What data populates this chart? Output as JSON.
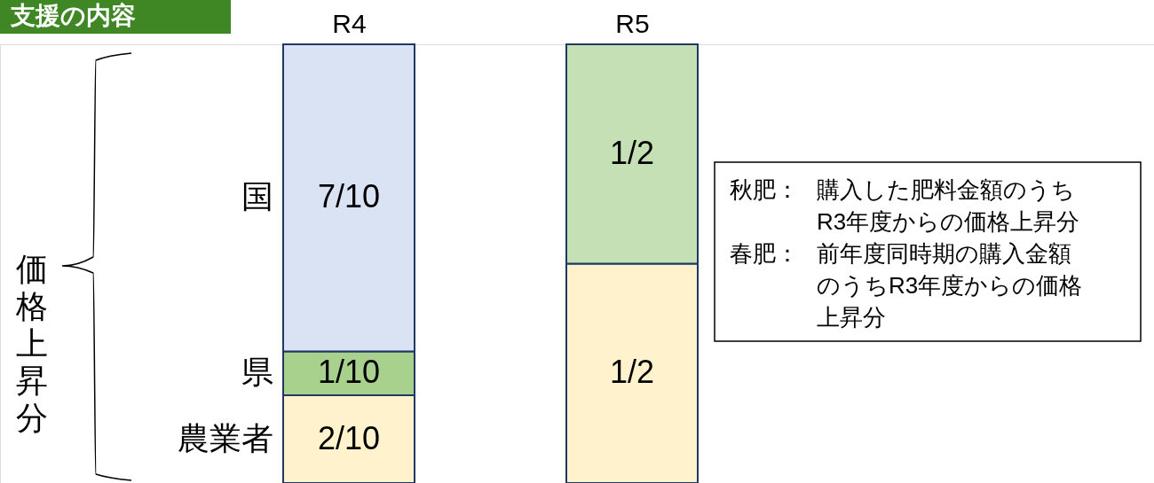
{
  "chart_data": {
    "type": "bar",
    "title": "支援の内容",
    "stacked": true,
    "legend": false,
    "categories": [
      "R4",
      "R5"
    ],
    "series": [
      {
        "name": "農業者",
        "color": "#fff2cc",
        "values": [
          0.2,
          0.5
        ],
        "value_labels": [
          "2/10",
          "1/2"
        ]
      },
      {
        "name": "県",
        "colors": [
          "#a9d18e",
          "#c5e0b4"
        ],
        "values": [
          0.1,
          0.5
        ],
        "value_labels": [
          "1/10",
          "1/2"
        ]
      },
      {
        "name": "国",
        "color": "#dae3f3",
        "values": [
          0.7,
          null
        ],
        "value_labels": [
          "7/10",
          null
        ]
      }
    ],
    "annotations": [
      "価格上昇分",
      "秋肥：購入した肥料金額のうち",
      "R3年度からの価格上昇分",
      "春肥：前年度同時期の購入金額",
      "のうちR3年度からの価格",
      "上昇分"
    ]
  }
}
